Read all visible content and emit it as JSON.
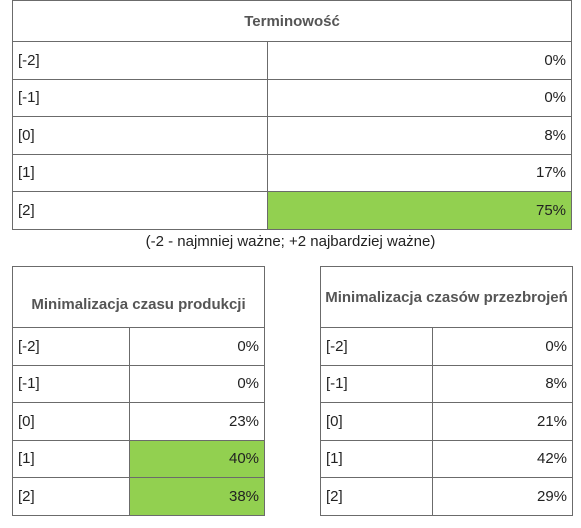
{
  "table1": {
    "title": "Terminowość",
    "rows": [
      {
        "key": "[-2]",
        "value": "0%"
      },
      {
        "key": "[-1]",
        "value": "0%"
      },
      {
        "key": "[0]",
        "value": "8%"
      },
      {
        "key": "[1]",
        "value": "17%"
      },
      {
        "key": "[2]",
        "value": "75%"
      }
    ]
  },
  "note": "(-2 - najmniej ważne; +2 najbardziej ważne)",
  "table2": {
    "title": "Minimalizacja czasu produkcji",
    "rows": [
      {
        "key": "[-2]",
        "value": "0%"
      },
      {
        "key": "[-1]",
        "value": "0%"
      },
      {
        "key": "[0]",
        "value": "23%"
      },
      {
        "key": "[1]",
        "value": "40%"
      },
      {
        "key": "[2]",
        "value": "38%"
      }
    ]
  },
  "table3": {
    "title": "Minimalizacja czasów przezbrojeń",
    "rows": [
      {
        "key": "[-2]",
        "value": "0%"
      },
      {
        "key": "[-1]",
        "value": "8%"
      },
      {
        "key": "[0]",
        "value": "21%"
      },
      {
        "key": "[1]",
        "value": "42%"
      },
      {
        "key": "[2]",
        "value": "29%"
      }
    ]
  },
  "colors": {
    "highlight": "#92d050",
    "border": "#6b6b6b"
  }
}
